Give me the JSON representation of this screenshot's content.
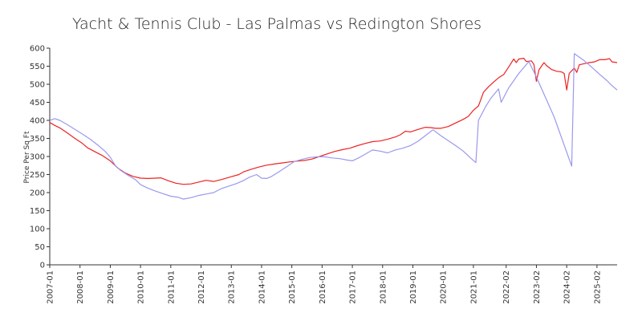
{
  "chart_data": {
    "type": "line",
    "title": "Yacht & Tennis Club - Las Palmas vs Redington Shores",
    "xlabel": "",
    "ylabel": "Price Per Sq Ft",
    "ylim": [
      0,
      600
    ],
    "yticks": [
      0,
      50,
      100,
      150,
      200,
      250,
      300,
      350,
      400,
      450,
      500,
      550,
      600
    ],
    "xlim": [
      "2007-01",
      "2025-10"
    ],
    "xtick_labels": [
      "2007-01",
      "2008-01",
      "2009-01",
      "2010-01",
      "2011-01",
      "2012-01",
      "2013-01",
      "2014-01",
      "2015-01",
      "2016-01",
      "2017-01",
      "2018-01",
      "2019-01",
      "2020-01",
      "2021-01",
      "2022-02",
      "2023-02",
      "2024-02",
      "2025-02"
    ],
    "grid": false,
    "legend": "none",
    "series": [
      {
        "color": "#ee2222",
        "points": [
          [
            "2007-01",
            394
          ],
          [
            "2007-03",
            386
          ],
          [
            "2007-05",
            379
          ],
          [
            "2007-08",
            365
          ],
          [
            "2007-11",
            350
          ],
          [
            "2008-02",
            336
          ],
          [
            "2008-04",
            324
          ],
          [
            "2008-07",
            313
          ],
          [
            "2008-10",
            302
          ],
          [
            "2009-01",
            288
          ],
          [
            "2009-04",
            268
          ],
          [
            "2009-07",
            254
          ],
          [
            "2009-10",
            245
          ],
          [
            "2010-01",
            240
          ],
          [
            "2010-04",
            239
          ],
          [
            "2010-07",
            240
          ],
          [
            "2010-09",
            241
          ],
          [
            "2010-12",
            233
          ],
          [
            "2011-03",
            226
          ],
          [
            "2011-06",
            223
          ],
          [
            "2011-09",
            224
          ],
          [
            "2011-12",
            229
          ],
          [
            "2012-03",
            234
          ],
          [
            "2012-06",
            231
          ],
          [
            "2012-09",
            236
          ],
          [
            "2013-01",
            244
          ],
          [
            "2013-04",
            250
          ],
          [
            "2013-06",
            258
          ],
          [
            "2013-09",
            265
          ],
          [
            "2013-12",
            271
          ],
          [
            "2014-03",
            276
          ],
          [
            "2014-06",
            279
          ],
          [
            "2014-09",
            282
          ],
          [
            "2014-12",
            285
          ],
          [
            "2015-03",
            287
          ],
          [
            "2015-06",
            289
          ],
          [
            "2015-09",
            293
          ],
          [
            "2015-12",
            300
          ],
          [
            "2016-03",
            307
          ],
          [
            "2016-06",
            314
          ],
          [
            "2016-09",
            319
          ],
          [
            "2016-12",
            323
          ],
          [
            "2017-03",
            330
          ],
          [
            "2017-06",
            336
          ],
          [
            "2017-09",
            341
          ],
          [
            "2017-12",
            343
          ],
          [
            "2018-03",
            348
          ],
          [
            "2018-06",
            354
          ],
          [
            "2018-08",
            360
          ],
          [
            "2018-10",
            370
          ],
          [
            "2018-12",
            368
          ],
          [
            "2019-03",
            375
          ],
          [
            "2019-06",
            381
          ],
          [
            "2019-08",
            380
          ],
          [
            "2019-10",
            378
          ],
          [
            "2019-12",
            378
          ],
          [
            "2020-03",
            383
          ],
          [
            "2020-06",
            393
          ],
          [
            "2020-09",
            403
          ],
          [
            "2020-11",
            411
          ],
          [
            "2021-01",
            428
          ],
          [
            "2021-03",
            440
          ],
          [
            "2021-05",
            478
          ],
          [
            "2021-07",
            493
          ],
          [
            "2021-09",
            506
          ],
          [
            "2021-11",
            518
          ],
          [
            "2022-01",
            527
          ],
          [
            "2022-03",
            548
          ],
          [
            "2022-05",
            570
          ],
          [
            "2022-06",
            560
          ],
          [
            "2022-07",
            570
          ],
          [
            "2022-09",
            572
          ],
          [
            "2022-10",
            563
          ],
          [
            "2022-12",
            565
          ],
          [
            "2023-01",
            555
          ],
          [
            "2023-02",
            508
          ],
          [
            "2023-03",
            540
          ],
          [
            "2023-05",
            560
          ],
          [
            "2023-06",
            552
          ],
          [
            "2023-08",
            541
          ],
          [
            "2023-10",
            536
          ],
          [
            "2023-12",
            534
          ],
          [
            "2024-01",
            530
          ],
          [
            "2024-02",
            484
          ],
          [
            "2024-03",
            530
          ],
          [
            "2024-05",
            545
          ],
          [
            "2024-06",
            533
          ],
          [
            "2024-07",
            554
          ],
          [
            "2024-09",
            557
          ],
          [
            "2024-11",
            560
          ],
          [
            "2025-01",
            562
          ],
          [
            "2025-03",
            568
          ],
          [
            "2025-05",
            568
          ],
          [
            "2025-07",
            571
          ],
          [
            "2025-08",
            562
          ],
          [
            "2025-10",
            560
          ]
        ]
      },
      {
        "color": "#9999ee",
        "points": [
          [
            "2007-01",
            400
          ],
          [
            "2007-03",
            405
          ],
          [
            "2007-05",
            400
          ],
          [
            "2007-08",
            388
          ],
          [
            "2007-11",
            375
          ],
          [
            "2008-02",
            362
          ],
          [
            "2008-05",
            348
          ],
          [
            "2008-08",
            332
          ],
          [
            "2008-11",
            314
          ],
          [
            "2009-01",
            298
          ],
          [
            "2009-03",
            275
          ],
          [
            "2009-05",
            262
          ],
          [
            "2009-08",
            248
          ],
          [
            "2009-11",
            236
          ],
          [
            "2010-01",
            222
          ],
          [
            "2010-04",
            212
          ],
          [
            "2010-07",
            204
          ],
          [
            "2010-10",
            197
          ],
          [
            "2011-01",
            190
          ],
          [
            "2011-04",
            187
          ],
          [
            "2011-06",
            182
          ],
          [
            "2011-09",
            186
          ],
          [
            "2011-12",
            192
          ],
          [
            "2012-03",
            196
          ],
          [
            "2012-06",
            200
          ],
          [
            "2012-09",
            211
          ],
          [
            "2012-12",
            218
          ],
          [
            "2013-03",
            225
          ],
          [
            "2013-06",
            234
          ],
          [
            "2013-08",
            242
          ],
          [
            "2013-11",
            250
          ],
          [
            "2014-01",
            240
          ],
          [
            "2014-03",
            239
          ],
          [
            "2014-05",
            245
          ],
          [
            "2014-08",
            258
          ],
          [
            "2014-11",
            272
          ],
          [
            "2015-02",
            286
          ],
          [
            "2015-05",
            292
          ],
          [
            "2015-08",
            297
          ],
          [
            "2015-11",
            299
          ],
          [
            "2016-02",
            299
          ],
          [
            "2016-05",
            296
          ],
          [
            "2016-08",
            294
          ],
          [
            "2016-11",
            290
          ],
          [
            "2017-01",
            288
          ],
          [
            "2017-04",
            298
          ],
          [
            "2017-07",
            310
          ],
          [
            "2017-09",
            318
          ],
          [
            "2017-12",
            315
          ],
          [
            "2018-03",
            310
          ],
          [
            "2018-06",
            318
          ],
          [
            "2018-09",
            323
          ],
          [
            "2018-12",
            330
          ],
          [
            "2019-03",
            342
          ],
          [
            "2019-06",
            358
          ],
          [
            "2019-09",
            374
          ],
          [
            "2019-12",
            358
          ],
          [
            "2020-03",
            344
          ],
          [
            "2020-06",
            330
          ],
          [
            "2020-09",
            315
          ],
          [
            "2020-12",
            295
          ],
          [
            "2021-02",
            283
          ],
          [
            "2021-03",
            400
          ],
          [
            "2021-06",
            440
          ],
          [
            "2021-08",
            462
          ],
          [
            "2021-11",
            487
          ],
          [
            "2021-12",
            450
          ],
          [
            "2022-03",
            490
          ],
          [
            "2022-07",
            530
          ],
          [
            "2022-11",
            563
          ],
          [
            "2023-02",
            520
          ],
          [
            "2023-09",
            410
          ],
          [
            "2024-04",
            273
          ],
          [
            "2024-05",
            585
          ],
          [
            "2024-09",
            565
          ],
          [
            "2024-12",
            547
          ],
          [
            "2025-03",
            528
          ],
          [
            "2025-06",
            510
          ],
          [
            "2025-08",
            496
          ],
          [
            "2025-10",
            484
          ]
        ]
      }
    ]
  }
}
